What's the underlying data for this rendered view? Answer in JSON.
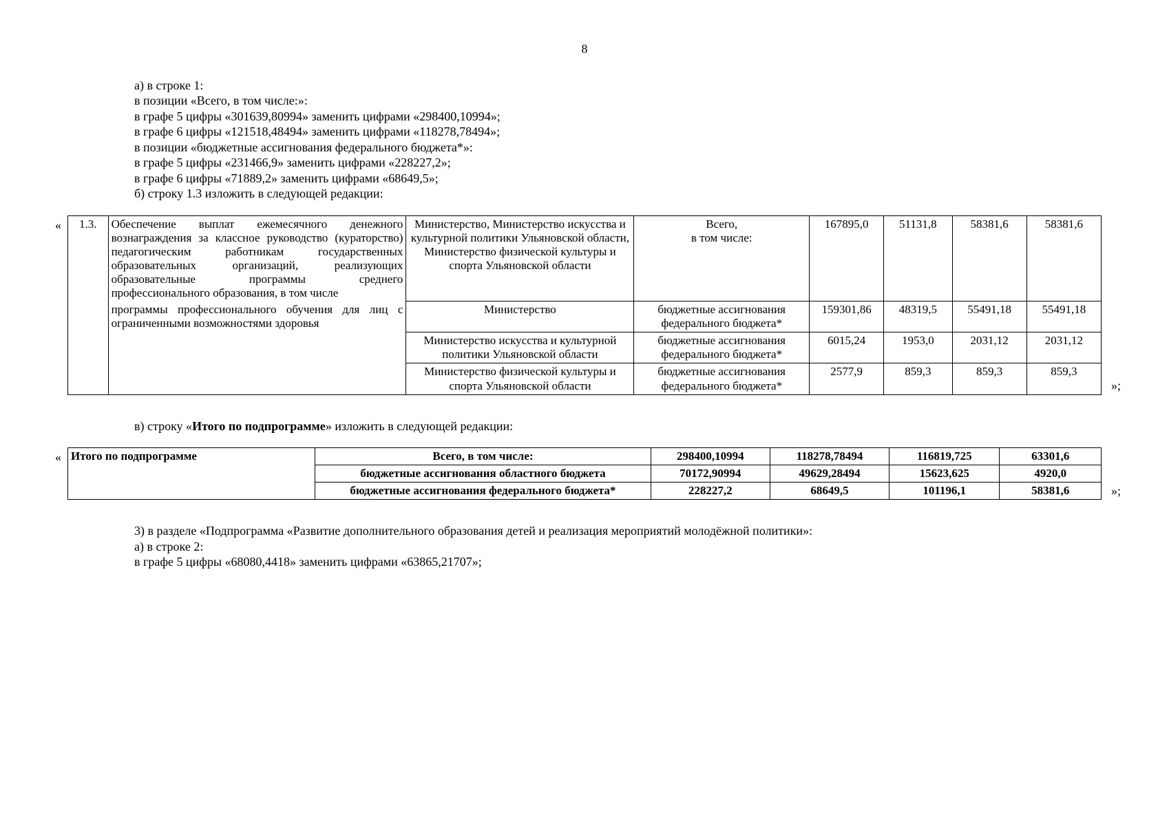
{
  "page_number": "8",
  "para": {
    "p1": "а) в строке 1:",
    "p2": "в позиции «Всего, в том числе:»:",
    "p3": "в графе 5 цифры «301639,80994» заменить цифрами «298400,10994»;",
    "p4": "в графе 6 цифры «121518,48494» заменить цифрами «118278,78494»;",
    "p5": "в позиции «бюджетные ассигнования федерального бюджета*»:",
    "p6": "в графе 5 цифры «231466,9» заменить цифрами «228227,2»;",
    "p7": "в графе 6 цифры «71889,2» заменить цифрами «68649,5»;",
    "p8": "б) строку 1.3 изложить в следующей редакции:",
    "p9a": "в) строку «",
    "p9b": "Итого по подпрограмме",
    "p9c": "» изложить в следующей редакции:",
    "p10": "3) в разделе «Подпрограмма «Развитие дополнительного образования детей и реализация мероприятий молодёжной политики»:",
    "p11": "а) в строке 2:",
    "p12": "в графе 5 цифры «68080,4418» заменить цифрами «63865,21707»;"
  },
  "quote_open": "«",
  "quote_close": "»;",
  "table1": {
    "num": "1.3.",
    "desc_top": "Обеспечение выплат ежемесячного денежного вознаграждения за классное руководство (кураторство) педагогическим работникам государственных образовательных организаций, реализующих образовательные программы среднего профессионального образования, в том числе",
    "desc_bottom": "программы профессионального обучения для лиц с ограниченными возможностями здоровья",
    "rows": [
      {
        "ministry": "Министерство, Министерство искусства и культурной политики Ульяновской области, Министерство физической культуры и спорта Ульяновской области",
        "type": "Всего,\nв том числе:",
        "v1": "167895,0",
        "v2": "51131,8",
        "v3": "58381,6",
        "v4": "58381,6"
      },
      {
        "ministry": "Министерство",
        "type": "бюджетные ассигнования федерального бюджета*",
        "v1": "159301,86",
        "v2": "48319,5",
        "v3": "55491,18",
        "v4": "55491,18"
      },
      {
        "ministry": "Министерство искусства и культурной политики Ульяновской области",
        "type": "бюджетные ассигнования федерального бюджета*",
        "v1": "6015,24",
        "v2": "1953,0",
        "v3": "2031,12",
        "v4": "2031,12"
      },
      {
        "ministry": "Министерство физической культуры и спорта Ульяновской области",
        "type": "бюджетные ассигнования федерального бюджета*",
        "v1": "2577,9",
        "v2": "859,3",
        "v3": "859,3",
        "v4": "859,3"
      }
    ]
  },
  "table2": {
    "title": "Итого по подпрограмме",
    "rows": [
      {
        "label": "Всего, в том числе:",
        "v1": "298400,10994",
        "v2": "118278,78494",
        "v3": "116819,725",
        "v4": "63301,6"
      },
      {
        "label": "бюджетные ассигнования областного бюджета",
        "v1": "70172,90994",
        "v2": "49629,28494",
        "v3": "15623,625",
        "v4": "4920,0"
      },
      {
        "label": "бюджетные ассигнования федерального бюджета*",
        "v1": "228227,2",
        "v2": "68649,5",
        "v3": "101196,1",
        "v4": "58381,6"
      }
    ]
  }
}
